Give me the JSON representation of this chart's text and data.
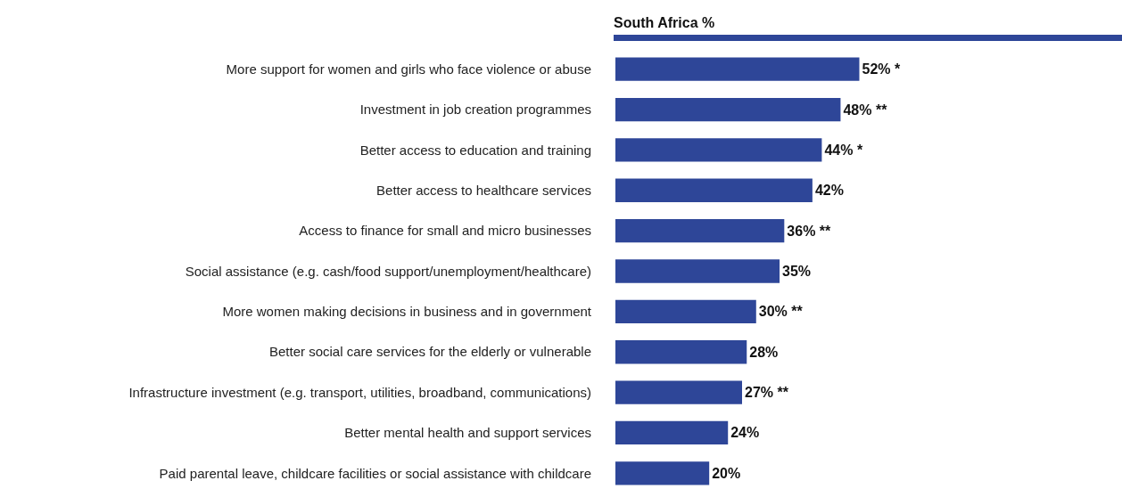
{
  "chart_data": {
    "type": "bar",
    "orientation": "horizontal",
    "title": "South Africa %",
    "categories": [
      "More support for women and girls who face violence or abuse",
      "Investment in job creation programmes",
      "Better access to education and training",
      "Better access to healthcare services",
      "Access to finance for small and micro businesses",
      "Social assistance (e.g. cash/food support/unemployment/healthcare)",
      "More women making decisions in business and in government",
      "Better social care services for the elderly or vulnerable",
      "Infrastructure investment (e.g. transport, utilities, broadband, communications)",
      "Better mental health and support services",
      "Paid parental leave, childcare facilities or social assistance with childcare"
    ],
    "values": [
      52,
      48,
      44,
      42,
      36,
      35,
      30,
      28,
      27,
      24,
      20
    ],
    "value_labels": [
      "52% *",
      "48% **",
      "44% *",
      "42%",
      "36% **",
      "35%",
      "30% **",
      "28%",
      "27% **",
      "24%",
      "20%"
    ],
    "color": "#2e4698",
    "xlim": [
      0,
      108
    ],
    "tick_labels": "y",
    "grid": false,
    "legend": false
  }
}
